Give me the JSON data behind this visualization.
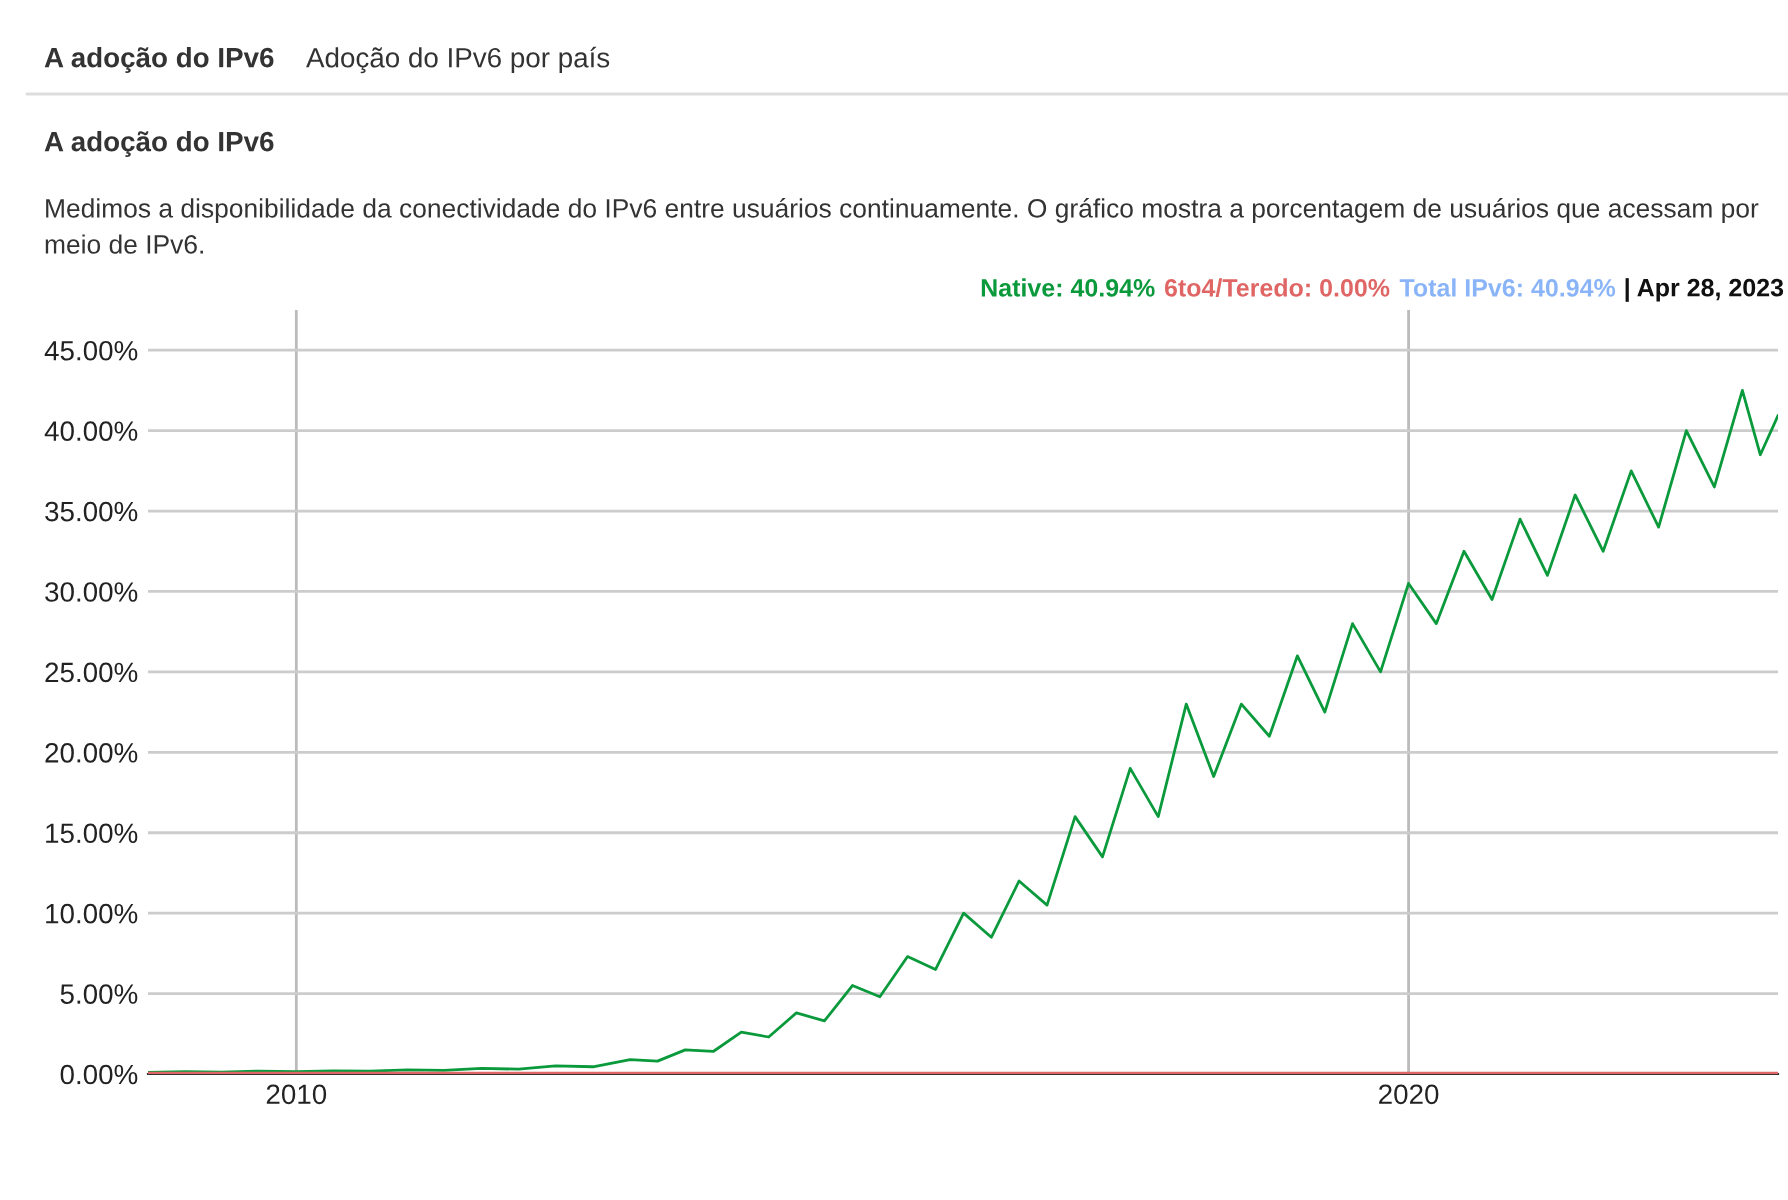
{
  "chart_data": {
    "type": "line",
    "title": "A adoção do IPv6",
    "subtitle": "Medimos a disponibilidade da conectividade do IPv6 entre usuários continuamente. O gráfico mostra a porcentagem de usuários que acessam por meio de IPv6.",
    "annotations": [
      "A adoção do IPv6",
      "Adoção do IPv6 por país",
      "Total IPv6: 40.94%",
      "| Apr 28, 2023"
    ],
    "x": [
      "2008-09",
      "2009-01",
      "2009-05",
      "2009-09",
      "2010-01",
      "2010-05",
      "2010-09",
      "2011-01",
      "2011-05",
      "2011-09",
      "2012-01",
      "2012-05",
      "2012-09",
      "2013-01",
      "2013-04",
      "2013-07",
      "2013-10",
      "2014-01",
      "2014-04",
      "2014-07",
      "2014-10",
      "2015-01",
      "2015-04",
      "2015-07",
      "2015-10",
      "2016-01",
      "2016-04",
      "2016-07",
      "2016-10",
      "2017-01",
      "2017-04",
      "2017-07",
      "2017-10",
      "2018-01",
      "2018-04",
      "2018-07",
      "2018-10",
      "2019-01",
      "2019-04",
      "2019-07",
      "2019-10",
      "2020-01",
      "2020-04",
      "2020-07",
      "2020-10",
      "2021-01",
      "2021-04",
      "2021-07",
      "2021-10",
      "2022-01",
      "2022-04",
      "2022-07",
      "2022-10",
      "2023-01",
      "2023-03",
      "2023-04-28"
    ],
    "series": [
      {
        "name": "Native: 40.94%",
        "color": "#0a9a3c",
        "values": [
          0.1,
          0.15,
          0.12,
          0.18,
          0.15,
          0.2,
          0.18,
          0.25,
          0.22,
          0.35,
          0.3,
          0.5,
          0.45,
          0.9,
          0.8,
          1.5,
          1.4,
          2.6,
          2.3,
          3.8,
          3.3,
          5.5,
          4.8,
          7.3,
          6.5,
          10,
          8.5,
          12,
          10.5,
          16,
          13.5,
          19,
          16,
          23,
          18.5,
          23,
          21,
          26,
          22.5,
          28,
          25,
          30.5,
          28,
          32.5,
          29.5,
          34.5,
          31,
          36,
          32.5,
          37.5,
          34,
          40,
          36.5,
          42.5,
          38.5,
          40.94
        ]
      },
      {
        "name": "6to4/Teredo: 0.00%",
        "color": "#e06666",
        "x": [
          "2008-09",
          "2023-04-28"
        ],
        "values": [
          0,
          0
        ]
      }
    ],
    "xlim": [
      "2008-09-01",
      "2023-04-28"
    ],
    "xticks": [
      "2010",
      "2020"
    ],
    "ylim": [
      0,
      47.5
    ],
    "yticks": [
      {
        "value": 0,
        "label": "0.00%"
      },
      {
        "value": 5,
        "label": "5.00%"
      },
      {
        "value": 10,
        "label": "10.00%"
      },
      {
        "value": 15,
        "label": "15.00%"
      },
      {
        "value": 20,
        "label": "20.00%"
      },
      {
        "value": 25,
        "label": "25.00%"
      },
      {
        "value": 30,
        "label": "30.00%"
      },
      {
        "value": 35,
        "label": "35.00%"
      },
      {
        "value": 40,
        "label": "40.00%"
      },
      {
        "value": 45,
        "label": "45.00%"
      }
    ],
    "grid": true,
    "legend": "top right"
  }
}
